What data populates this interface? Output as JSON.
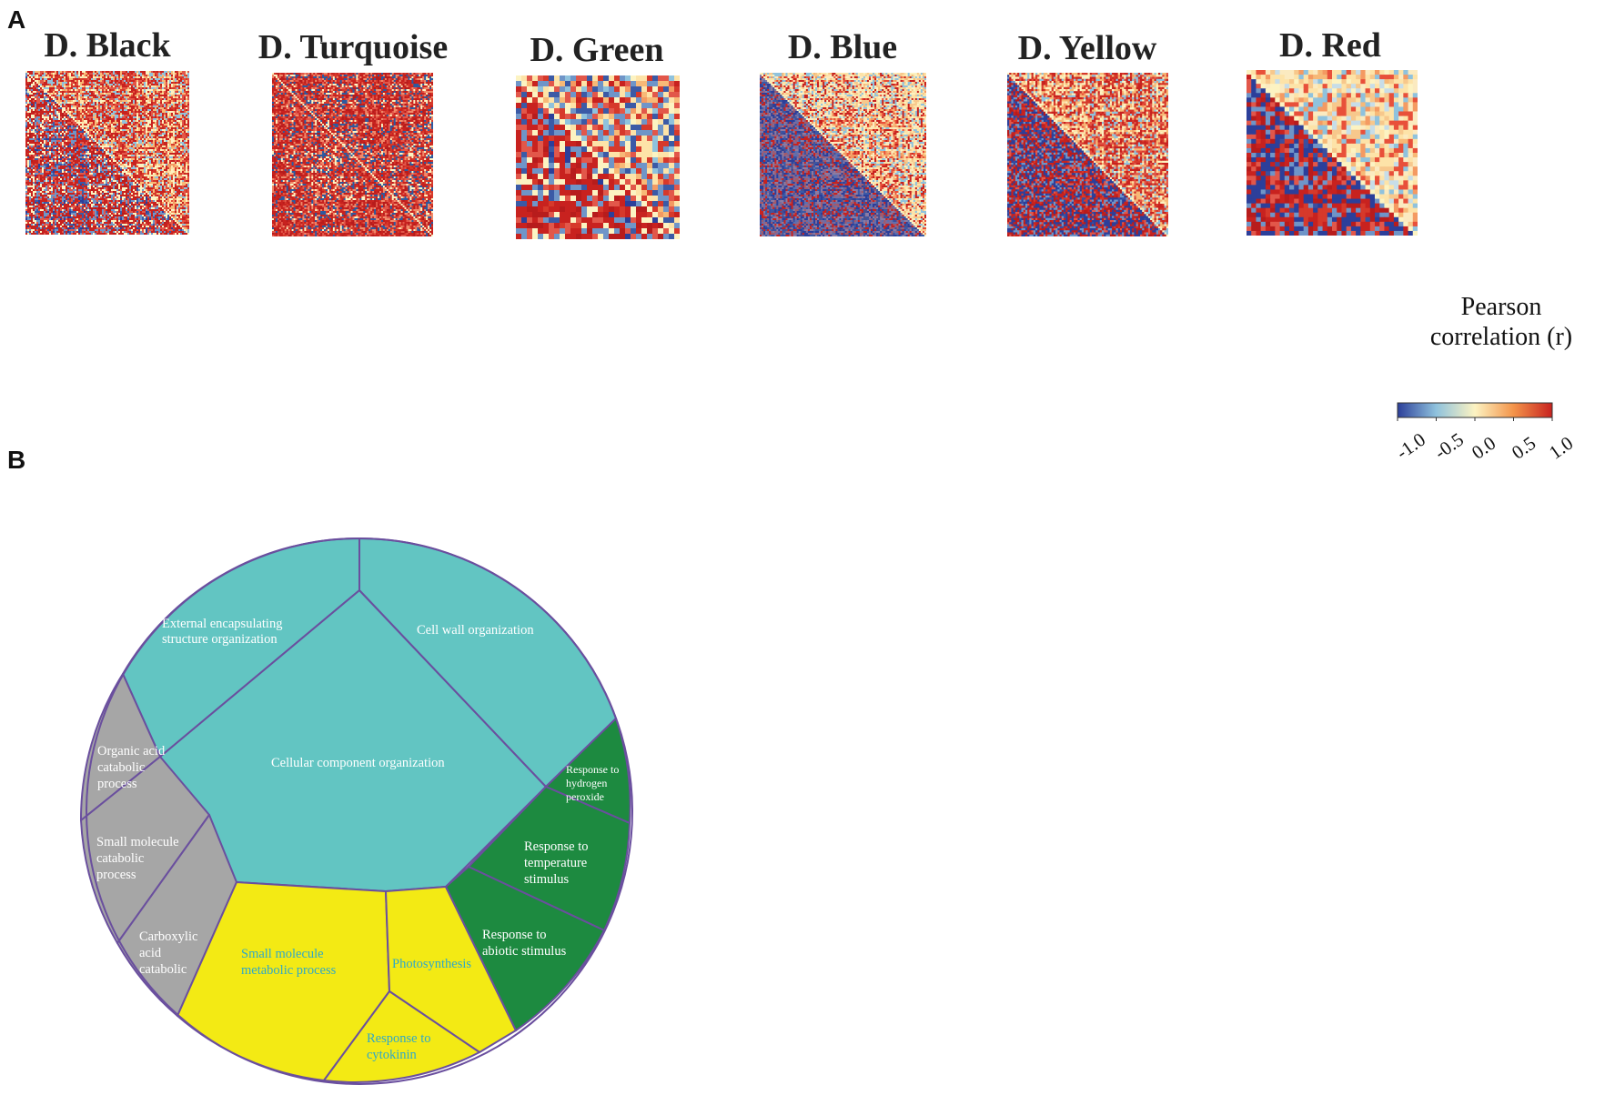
{
  "panels": {
    "a": "A",
    "b": "B"
  },
  "chart_data": [
    {
      "type": "heatmap",
      "panel": "A",
      "modules": [
        {
          "title": "D. Black",
          "n": 90,
          "upper": "red-cream",
          "lower": "red-blue"
        },
        {
          "title": "D. Turquoise",
          "n": 90,
          "upper": "red",
          "lower": "red"
        },
        {
          "title": "D. Green",
          "n": 30,
          "upper": "mixed",
          "lower": "red-blue"
        },
        {
          "title": "D. Blue",
          "n": 90,
          "upper": "cream-orange",
          "lower": "blue"
        },
        {
          "title": "D. Yellow",
          "n": 80,
          "upper": "red-cream",
          "lower": "blue-red"
        },
        {
          "title": "D. Red",
          "n": 36,
          "upper": "cream",
          "lower": "blue-red"
        }
      ],
      "colorbar": {
        "title_line1": "Pearson",
        "title_line2": "correlation (r)",
        "ticks": [
          "-1.0",
          "-0.5",
          "0.0",
          "0.5",
          "1.0"
        ],
        "range": [
          -1.0,
          1.0
        ],
        "colors": [
          "#2c3f9a",
          "#8fc2dd",
          "#fcf3c2",
          "#f3944a",
          "#c8221f"
        ]
      }
    },
    {
      "type": "voronoi-treemap",
      "panel": "B",
      "groups": [
        {
          "color": "#62c5c2",
          "labels": [
            "External encapsulating structure organization",
            "Cell wall organization",
            "Cellular component organization"
          ]
        },
        {
          "color": "#a6a6a6",
          "labels": [
            "Organic acid catabolic process",
            "Small molecule catabolic process",
            "Carboxylic acid catabolic"
          ]
        },
        {
          "color": "#f3ea14",
          "labels": [
            "Small molecule metabolic process",
            "Photosynthesis",
            "Response to cytokinin"
          ]
        },
        {
          "color": "#1d8a40",
          "labels": [
            "Response to hydrogen peroxide",
            "Response to temperature stimulus",
            "Response to abiotic stimulus"
          ]
        }
      ],
      "labels": {
        "ext1": "External encapsulating",
        "ext2": "structure organization",
        "cellwall": "Cell wall organization",
        "ccorg": "Cellular component organization",
        "oa1": "Organic acid",
        "oa2": "catabolic",
        "oa3": "process",
        "sm1": "Small molecule",
        "sm2": "catabolic",
        "sm3": "process",
        "ca1": "Carboxylic",
        "ca2": "acid",
        "ca3": "catabolic",
        "smm1": "Small molecule",
        "smm2": "metabolic process",
        "photo": "Photosynthesis",
        "cyt1": "Response to",
        "cyt2": "cytokinin",
        "hp1": "Response to",
        "hp2": "hydrogen",
        "hp3": "peroxide",
        "ts1": "Response to",
        "ts2": "temperature",
        "ts3": "stimulus",
        "ab1": "Response to",
        "ab2": "abiotic stimulus"
      }
    }
  ]
}
